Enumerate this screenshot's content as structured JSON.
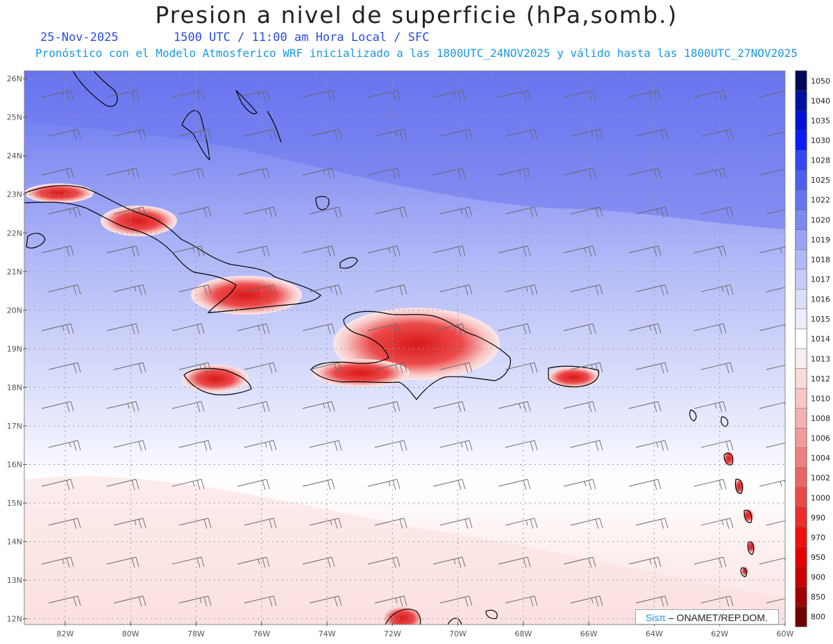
{
  "title": "Presion a nivel de superficie (hPa,somb.)",
  "date": "25-Nov-2025",
  "time_info": "1500 UTC / 11:00 am Hora Local / SFC",
  "model_info": "Pronóstico con el Modelo Atmosferico WRF inicializado a las 1800UTC_24NOV2025 y válido hasta las  1800UTC_27NOV2025",
  "lat_labels": [
    "26N",
    "25N",
    "24N",
    "23N",
    "22N",
    "21N",
    "20N",
    "19N",
    "18N",
    "17N",
    "16N",
    "15N",
    "14N",
    "13N",
    "12N"
  ],
  "lon_labels": [
    "82W",
    "80W",
    "78W",
    "76W",
    "74W",
    "72W",
    "70W",
    "68W",
    "66W",
    "64W",
    "62W",
    "60W"
  ],
  "colorbar": {
    "levels": [
      "1050",
      "1040",
      "1035",
      "1030",
      "1028",
      "1025",
      "1022",
      "1020",
      "1019",
      "1018",
      "1017",
      "1016",
      "1015",
      "1014",
      "1013",
      "1012",
      "1010",
      "1008",
      "1006",
      "1004",
      "1002",
      "1000",
      "990",
      "970",
      "950",
      "900",
      "850",
      "800"
    ],
    "colors": [
      "#000a5a",
      "#0010a0",
      "#0010d8",
      "#0a1cf5",
      "#3347f2",
      "#4d5ef0",
      "#6474f0",
      "#7c89f2",
      "#9aa3f5",
      "#b1b8f7",
      "#c6cbf9",
      "#dadefb",
      "#eceefd",
      "#ffffff",
      "#fdeeee",
      "#fbdada",
      "#f8c6c6",
      "#f5b1b1",
      "#f29a9a",
      "#ef8080",
      "#ec6565",
      "#e94a4a",
      "#ee2c2c",
      "#f01010",
      "#e60000",
      "#c80000",
      "#a00000",
      "#6e0000"
    ]
  },
  "logo": {
    "brand": "Sisπ",
    "text": " – ONAMET/REP.DOM."
  }
}
